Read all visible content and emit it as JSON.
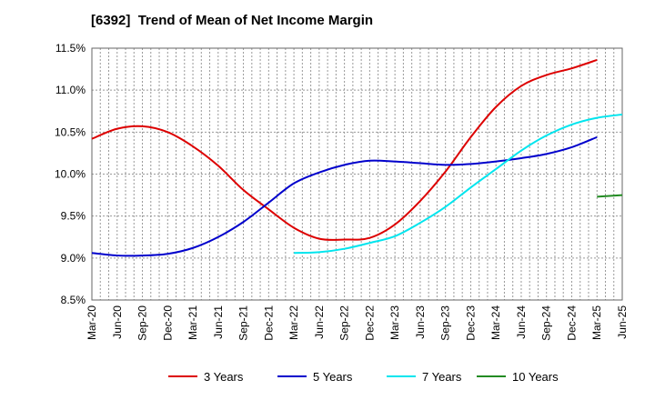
{
  "chart_data": {
    "type": "line",
    "title": "[6392]  Trend of Mean of Net Income Margin",
    "xlabel": "",
    "ylabel": "",
    "grid": true,
    "legend_position": "bottom",
    "x_categories": [
      "Mar-20",
      "Jun-20",
      "Sep-20",
      "Dec-20",
      "Mar-21",
      "Jun-21",
      "Sep-21",
      "Dec-21",
      "Mar-22",
      "Jun-22",
      "Sep-22",
      "Dec-22",
      "Mar-23",
      "Jun-23",
      "Sep-23",
      "Dec-23",
      "Mar-24",
      "Jun-24",
      "Sep-24",
      "Dec-24",
      "Mar-25",
      "Jun-25"
    ],
    "ylim": [
      8.5,
      11.5
    ],
    "y_ticks": [
      "8.5%",
      "9.0%",
      "9.5%",
      "10.0%",
      "10.5%",
      "11.0%",
      "11.5%"
    ],
    "y_tick_values": [
      8.5,
      9.0,
      9.5,
      10.0,
      10.5,
      11.0,
      11.5
    ],
    "series": [
      {
        "name": "3 Years",
        "color": "#dd0000",
        "start_index": 0,
        "values": [
          10.42,
          10.54,
          10.57,
          10.5,
          10.33,
          10.1,
          9.81,
          9.58,
          9.36,
          9.23,
          9.22,
          9.24,
          9.4,
          9.68,
          10.03,
          10.44,
          10.8,
          11.05,
          11.18,
          11.26,
          11.36
        ]
      },
      {
        "name": "5 Years",
        "color": "#0000cc",
        "start_index": 0,
        "values": [
          9.06,
          9.03,
          9.03,
          9.05,
          9.12,
          9.25,
          9.43,
          9.66,
          9.89,
          10.02,
          10.11,
          10.16,
          10.15,
          10.13,
          10.11,
          10.12,
          10.15,
          10.19,
          10.24,
          10.32,
          10.44
        ]
      },
      {
        "name": "7 Years",
        "color": "#00e5ee",
        "start_index": 8,
        "values": [
          9.06,
          9.07,
          9.11,
          9.18,
          9.26,
          9.42,
          9.61,
          9.84,
          10.06,
          10.28,
          10.46,
          10.59,
          10.67,
          10.71
        ]
      },
      {
        "name": "10 Years",
        "color": "#228b22",
        "start_index": 20,
        "values": [
          9.73,
          9.75
        ]
      }
    ]
  }
}
